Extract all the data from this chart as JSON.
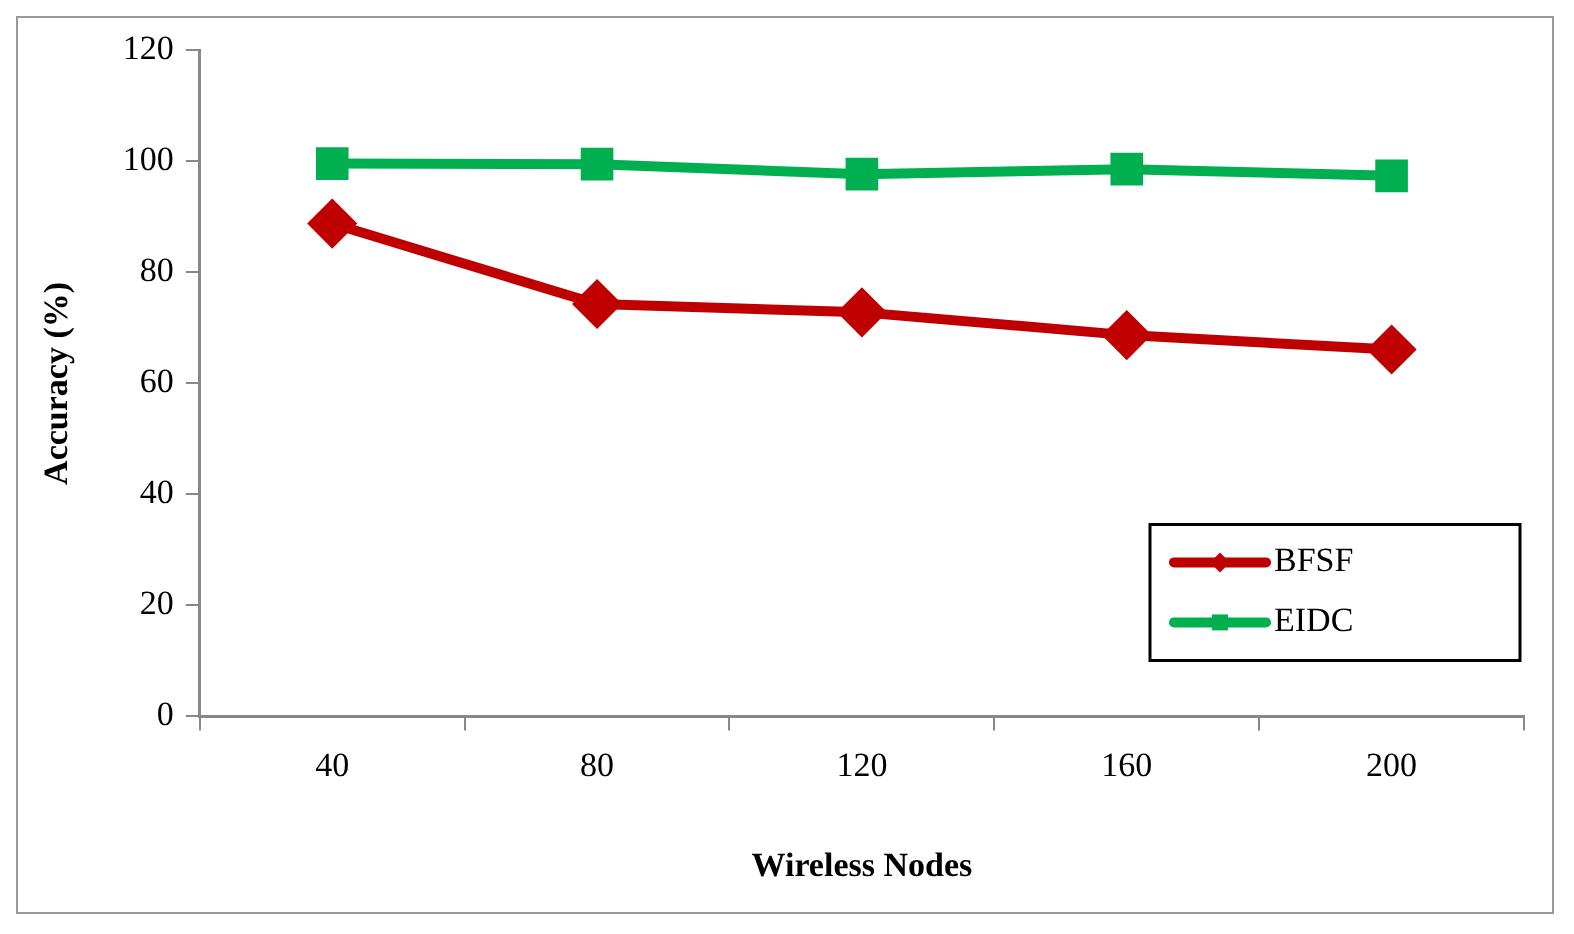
{
  "chart_data": {
    "type": "line",
    "xlabel": "Wireless Nodes",
    "ylabel": "Accuracy (%)",
    "categories": [
      "40",
      "80",
      "120",
      "160",
      "200"
    ],
    "series": [
      {
        "name": "BFSF",
        "color": "#c00000",
        "marker": "diamond",
        "values": [
          88.8,
          74.3,
          72.8,
          68.7,
          66.1
        ]
      },
      {
        "name": "EIDC",
        "color": "#00b050",
        "marker": "square",
        "values": [
          99.6,
          99.5,
          97.7,
          98.6,
          97.4
        ]
      }
    ],
    "ylim": [
      0,
      120
    ],
    "yticks": [
      0,
      20,
      40,
      60,
      80,
      100,
      120
    ],
    "grid": false,
    "legend": "right"
  }
}
